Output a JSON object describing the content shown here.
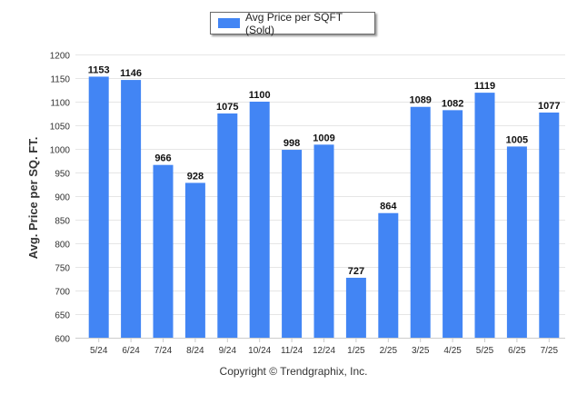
{
  "chart_data": {
    "type": "bar",
    "legend": [
      "Avg Price per SQFT (Sold)"
    ],
    "legend_position": "top-center",
    "ylabel": "Avg. Price per SQ. FT.",
    "xlabel": "",
    "ylim": [
      600,
      1200
    ],
    "yticks": [
      600,
      650,
      700,
      750,
      800,
      850,
      900,
      950,
      1000,
      1050,
      1100,
      1150,
      1200
    ],
    "grid": true,
    "bar_color": "#4285f4",
    "categories": [
      "5/24",
      "6/24",
      "7/24",
      "8/24",
      "9/24",
      "10/24",
      "11/24",
      "12/24",
      "1/25",
      "2/25",
      "3/25",
      "4/25",
      "5/25",
      "6/25",
      "7/25"
    ],
    "series": [
      {
        "name": "Avg Price per SQFT (Sold)",
        "values": [
          1153,
          1146,
          966,
          928,
          1075,
          1100,
          998,
          1009,
          727,
          864,
          1089,
          1082,
          1119,
          1005,
          1077
        ]
      }
    ]
  },
  "footer": {
    "copyright": "Copyright © Trendgraphix, Inc."
  }
}
